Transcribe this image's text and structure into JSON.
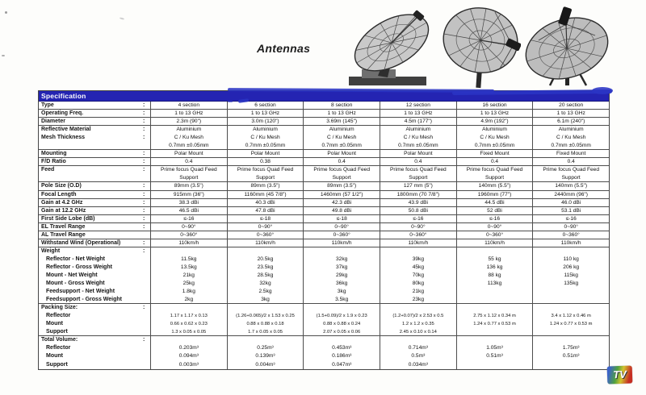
{
  "page": {
    "title": "Antennas"
  },
  "colors": {
    "header_blue": "#2424b2",
    "artifact_blue": "#2a34c4",
    "border_gray": "#4d4d4d"
  },
  "logo": {
    "text": "TV"
  },
  "antenna_images": [
    {
      "name": "polar-mount-mesh-dish-photo"
    },
    {
      "name": "pole-mount-mesh-dish-photo"
    },
    {
      "name": "fixed-mount-mesh-dish-photo"
    }
  ],
  "table": {
    "header": "Specification",
    "rows": [
      {
        "key": "type",
        "label": "Type",
        "colon": true,
        "line": true,
        "values": [
          "4 section",
          "6 section",
          "8 section",
          "12 section",
          "16 section",
          "20 section"
        ]
      },
      {
        "key": "operating-freq",
        "label": "Operating Freq.",
        "colon": true,
        "line": true,
        "values": [
          "1 to 13 GHz",
          "1 to 13 GHz",
          "1 to 13 GHz",
          "1 to 13 GHz",
          "1 to 13 GHz",
          "1 to 13 GHz"
        ]
      },
      {
        "key": "diameter",
        "label": "Diameter",
        "colon": true,
        "line": true,
        "values": [
          "2.3m (90\")",
          "3.0m (120\")",
          "3.69m (145\")",
          "4.5m (177\")",
          "4.9m (192\")",
          "6.1m (240\")"
        ]
      },
      {
        "key": "reflective-material",
        "label": "Reflective Material",
        "colon": true,
        "line": false,
        "values": [
          "Aluminium",
          "Aluminium",
          "Aluminium",
          "Aluminium",
          "Aluminium",
          "Aluminium"
        ]
      },
      {
        "key": "mesh-thickness",
        "label": "Mesh Thickness",
        "colon": true,
        "line": false,
        "values": [
          "C / Ku Mesh",
          "C / Ku Mesh",
          "C / Ku Mesh",
          "C / Ku Mesh",
          "C / Ku Mesh",
          "C / Ku Mesh"
        ]
      },
      {
        "key": "mesh-thickness-2",
        "label": "",
        "colon": false,
        "line": true,
        "values": [
          "0.7mm ±0.05mm",
          "0.7mm ±0.05mm",
          "0.7mm ±0.05mm",
          "0.7mm ±0.05mm",
          "0.7mm ±0.05mm",
          "0.7mm ±0.05mm"
        ]
      },
      {
        "key": "mounting",
        "label": "Mounting",
        "colon": true,
        "line": true,
        "values": [
          "Polar Mount",
          "Polar Mount",
          "Polar Mount",
          "Polar Mount",
          "Fixed Mount",
          "Fixed Mount"
        ]
      },
      {
        "key": "fd-ratio",
        "label": "F/D Ratio",
        "colon": true,
        "line": true,
        "values": [
          "0.4",
          "0.38",
          "0.4",
          "0.4",
          "0.4",
          "0.4"
        ]
      },
      {
        "key": "feed",
        "label": "Feed",
        "colon": true,
        "line": false,
        "values": [
          "Prime focus Quad Feed",
          "Prime focus Quad Feed",
          "Prime focus Quad Feed",
          "Prime focus Quad Feed",
          "Prime focus Quad Feed",
          "Prime focus Quad Feed"
        ]
      },
      {
        "key": "feed-2",
        "label": "",
        "colon": false,
        "line": true,
        "values": [
          "Support",
          "Support",
          "Support",
          "Support",
          "Support",
          "Support"
        ]
      },
      {
        "key": "pole-size",
        "label": "Pole Size (O.D)",
        "colon": true,
        "line": true,
        "values": [
          "89mm (3.5\")",
          "89mm (3.5\")",
          "89mm (3.5\")",
          "127 mm (5\")",
          "140mm (5.5\")",
          "140mm (5.5\")"
        ]
      },
      {
        "key": "focal-length",
        "label": "Focal Length",
        "colon": true,
        "line": true,
        "values": [
          "915mm (36\")",
          "1160mm (45 7/8\")",
          "1460mm (57 1/2\")",
          "1800mm (70 7/8\")",
          "1960mm (77\")",
          "2440mm (96\")"
        ]
      },
      {
        "key": "gain-4-2-ghz",
        "label": "Gain at 4.2 GHz",
        "colon": true,
        "line": true,
        "values": [
          "38.3 dBi",
          "40.3 dBi",
          "42.3 dBi",
          "43.9 dBi",
          "44.5 dBi",
          "46.0 dBi"
        ]
      },
      {
        "key": "gain-12-2-ghz",
        "label": "Gain at 12.2 GHz",
        "colon": true,
        "line": true,
        "values": [
          "46.5 dBi",
          "47.8 dBi",
          "49.8 dBi",
          "50.8 dBi",
          "52 dBi",
          "53.1 dBi"
        ]
      },
      {
        "key": "first-side-lobe",
        "label": "First Side Lobe (dB)",
        "colon": true,
        "line": true,
        "values": [
          "≤-16",
          "≤-18",
          "≤-18",
          "≤-16",
          "≤-16",
          "≤-16"
        ]
      },
      {
        "key": "el-travel-range",
        "label": "EL Travel Range",
        "colon": true,
        "line": true,
        "values": [
          "0~90°",
          "0~90°",
          "0~90°",
          "0~90°",
          "0~90°",
          "0~90°"
        ]
      },
      {
        "key": "al-travel-range",
        "label": "AL Travel Range",
        "colon": false,
        "line": true,
        "values": [
          "0~360°",
          "0~360°",
          "0~360°",
          "0~360°",
          "0~360°",
          "0~360°"
        ]
      },
      {
        "key": "withstand-wind",
        "label": "Withstand Wind (Operational)",
        "colon": true,
        "line": true,
        "values": [
          "110km/h",
          "110km/h",
          "110km/h",
          "110km/h",
          "110km/h",
          "110km/h"
        ]
      },
      {
        "key": "weight",
        "label": "Weight",
        "colon": true,
        "group": true,
        "line": false,
        "values": [
          "",
          "",
          "",
          "",
          "",
          ""
        ]
      },
      {
        "key": "reflector-net-weight",
        "label": "Reflector - Net Weight",
        "sub": true,
        "line": false,
        "values": [
          "11.5kg",
          "20.5kg",
          "32kg",
          "39kg",
          "55 kg",
          "110 kg"
        ]
      },
      {
        "key": "reflector-gross-weight",
        "label": "Reflector - Gross Weight",
        "sub": true,
        "line": false,
        "values": [
          "13.5kg",
          "23.5kg",
          "37kg",
          "45kg",
          "136 kg",
          "206 kg"
        ]
      },
      {
        "key": "mount-net-weight",
        "label": "Mount - Net Weight",
        "sub": true,
        "line": false,
        "values": [
          "21kg",
          "28.5kg",
          "29kg",
          "70kg",
          "88 kg",
          "115kg"
        ]
      },
      {
        "key": "mount-gross-weight",
        "label": "Mount - Gross Weight",
        "sub": true,
        "line": false,
        "values": [
          "25kg",
          "32kg",
          "36kg",
          "80kg",
          "113kg",
          "135kg"
        ]
      },
      {
        "key": "feedsupport-net-weight",
        "label": "Feedsupport - Net Weight",
        "sub": true,
        "line": false,
        "values": [
          "1.8kg",
          "2.5kg",
          "3kg",
          "21kg",
          "",
          ""
        ]
      },
      {
        "key": "feedsupport-gross-weight",
        "label": "Feedsupport - Gross Weight",
        "sub": true,
        "line": true,
        "values": [
          "2kg",
          "3kg",
          "3.5kg",
          "23kg",
          "",
          ""
        ]
      },
      {
        "key": "packing-size",
        "label": "Packing Size:",
        "colon": true,
        "group": true,
        "line": false,
        "values": [
          "",
          "",
          "",
          "",
          "",
          ""
        ]
      },
      {
        "key": "packing-reflector",
        "label": "Reflector",
        "sub": true,
        "small": true,
        "line": false,
        "values": [
          "1.17 x 1.17 x 0.13",
          "(1.26+0.065)/2 x 1.53 x 0.25",
          "(1.5+0.09)/2 x 1.9 x 0.23",
          "(1.2+0.07)/2 x 2.53 x 0.5",
          "2.75 x 1.12 x 0.34 m",
          "3.4 x 1.12 x 0.46 m"
        ]
      },
      {
        "key": "packing-mount",
        "label": "Mount",
        "sub": true,
        "small": true,
        "line": false,
        "values": [
          "0.66 x 0.62 x 0.23",
          "0.88 x 0.88 x 0.18",
          "0.88 x 0.88 x 0.24",
          "1.2 x 1.2 x 0.35",
          "1.24 x 0.77 x 0.53 m",
          "1.24 x 0.77 x 0.53 m"
        ]
      },
      {
        "key": "packing-support",
        "label": "Support",
        "sub": true,
        "small": true,
        "line": true,
        "values": [
          "1.3 x 0.05 x 0.05",
          "1.7 x 0.05 x 0.05",
          "2.07 x 0.05 x 0.06",
          "2.45 x 0.10 x 0.14",
          "",
          ""
        ]
      },
      {
        "key": "total-volume",
        "label": "Total Volume:",
        "colon": true,
        "group": true,
        "line": false,
        "values": [
          "",
          "",
          "",
          "",
          "",
          ""
        ]
      },
      {
        "key": "volume-reflector",
        "label": "Reflector",
        "sub": true,
        "line": false,
        "values": [
          "0.203m³",
          "0.25m³",
          "0.453m³",
          "0.714m³",
          "1.05m³",
          "1.75m³"
        ]
      },
      {
        "key": "volume-mount",
        "label": "Mount",
        "sub": true,
        "line": false,
        "values": [
          "0.094m³",
          "0.139m³",
          "0.186m³",
          "0.5m³",
          "0.51m³",
          "0.51m³"
        ]
      },
      {
        "key": "volume-support",
        "label": "Support",
        "sub": true,
        "line": false,
        "values": [
          "0.003m³",
          "0.004m³",
          "0.047m³",
          "0.034m³",
          "",
          ""
        ]
      }
    ]
  }
}
